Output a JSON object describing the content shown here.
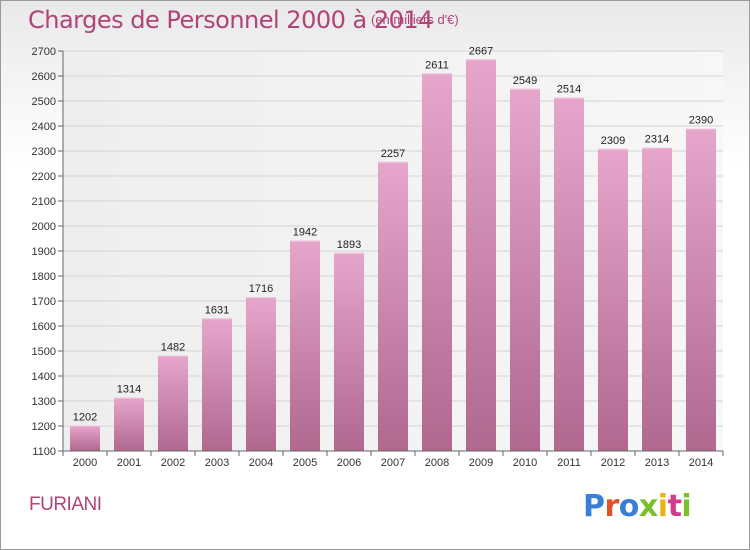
{
  "header": {
    "title": "Charges de Personnel 2000 à 2014",
    "subtitle": "(en milliers d'€)"
  },
  "footer": {
    "location": "FURIANI",
    "logo_text": "Proxiti",
    "logo_letter_colors": [
      "#3b7fd4",
      "#e0522d",
      "#3b7fd4",
      "#7bbf2a",
      "#e8b315",
      "#d43b8a",
      "#7bbf2a"
    ]
  },
  "colors": {
    "bar_top": "#e6a6cc",
    "bar_bottom": "#b0688f",
    "accent": "#b14378"
  },
  "chart_data": {
    "type": "bar",
    "title": "Charges de Personnel 2000 à 2014",
    "subtitle": "(en milliers d'€)",
    "xlabel": "",
    "ylabel": "",
    "categories": [
      "2000",
      "2001",
      "2002",
      "2003",
      "2004",
      "2005",
      "2006",
      "2007",
      "2008",
      "2009",
      "2010",
      "2011",
      "2012",
      "2013",
      "2014"
    ],
    "values": [
      1202,
      1314,
      1482,
      1631,
      1716,
      1942,
      1893,
      2257,
      2611,
      2667,
      2549,
      2514,
      2309,
      2314,
      2390
    ],
    "ylim": [
      1100,
      2700
    ],
    "yticks": [
      1100,
      1200,
      1300,
      1400,
      1500,
      1600,
      1700,
      1800,
      1900,
      2000,
      2100,
      2200,
      2300,
      2400,
      2500,
      2600,
      2700
    ],
    "grid": true,
    "legend": "none"
  }
}
